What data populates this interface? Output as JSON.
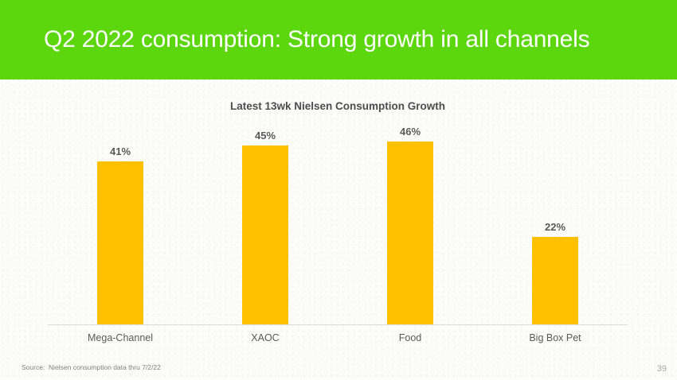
{
  "header": {
    "title": "Q2 2022 consumption: Strong growth in all channels",
    "bg_color": "#5cd60d",
    "text_color": "#ffffff"
  },
  "chart_data": {
    "type": "bar",
    "title": "Latest 13wk Nielsen Consumption Growth",
    "categories": [
      "Mega-Channel",
      "XAOC",
      "Food",
      "Big Box Pet"
    ],
    "values": [
      41,
      45,
      46,
      22
    ],
    "value_labels": [
      "41%",
      "45%",
      "46%",
      "22%"
    ],
    "bar_color": "#FFC000",
    "value_label_color": "#595959",
    "category_label_color": "#595959",
    "axis_line_color": "#dcdcdc",
    "xlabel": "",
    "ylabel": "",
    "ylim": [
      0,
      50
    ],
    "grid": false,
    "legend": "none",
    "y_axis_visible": false
  },
  "footer": {
    "source": "Source:  Nielsen consumption data thru 7/2/22",
    "page_number": "39"
  }
}
